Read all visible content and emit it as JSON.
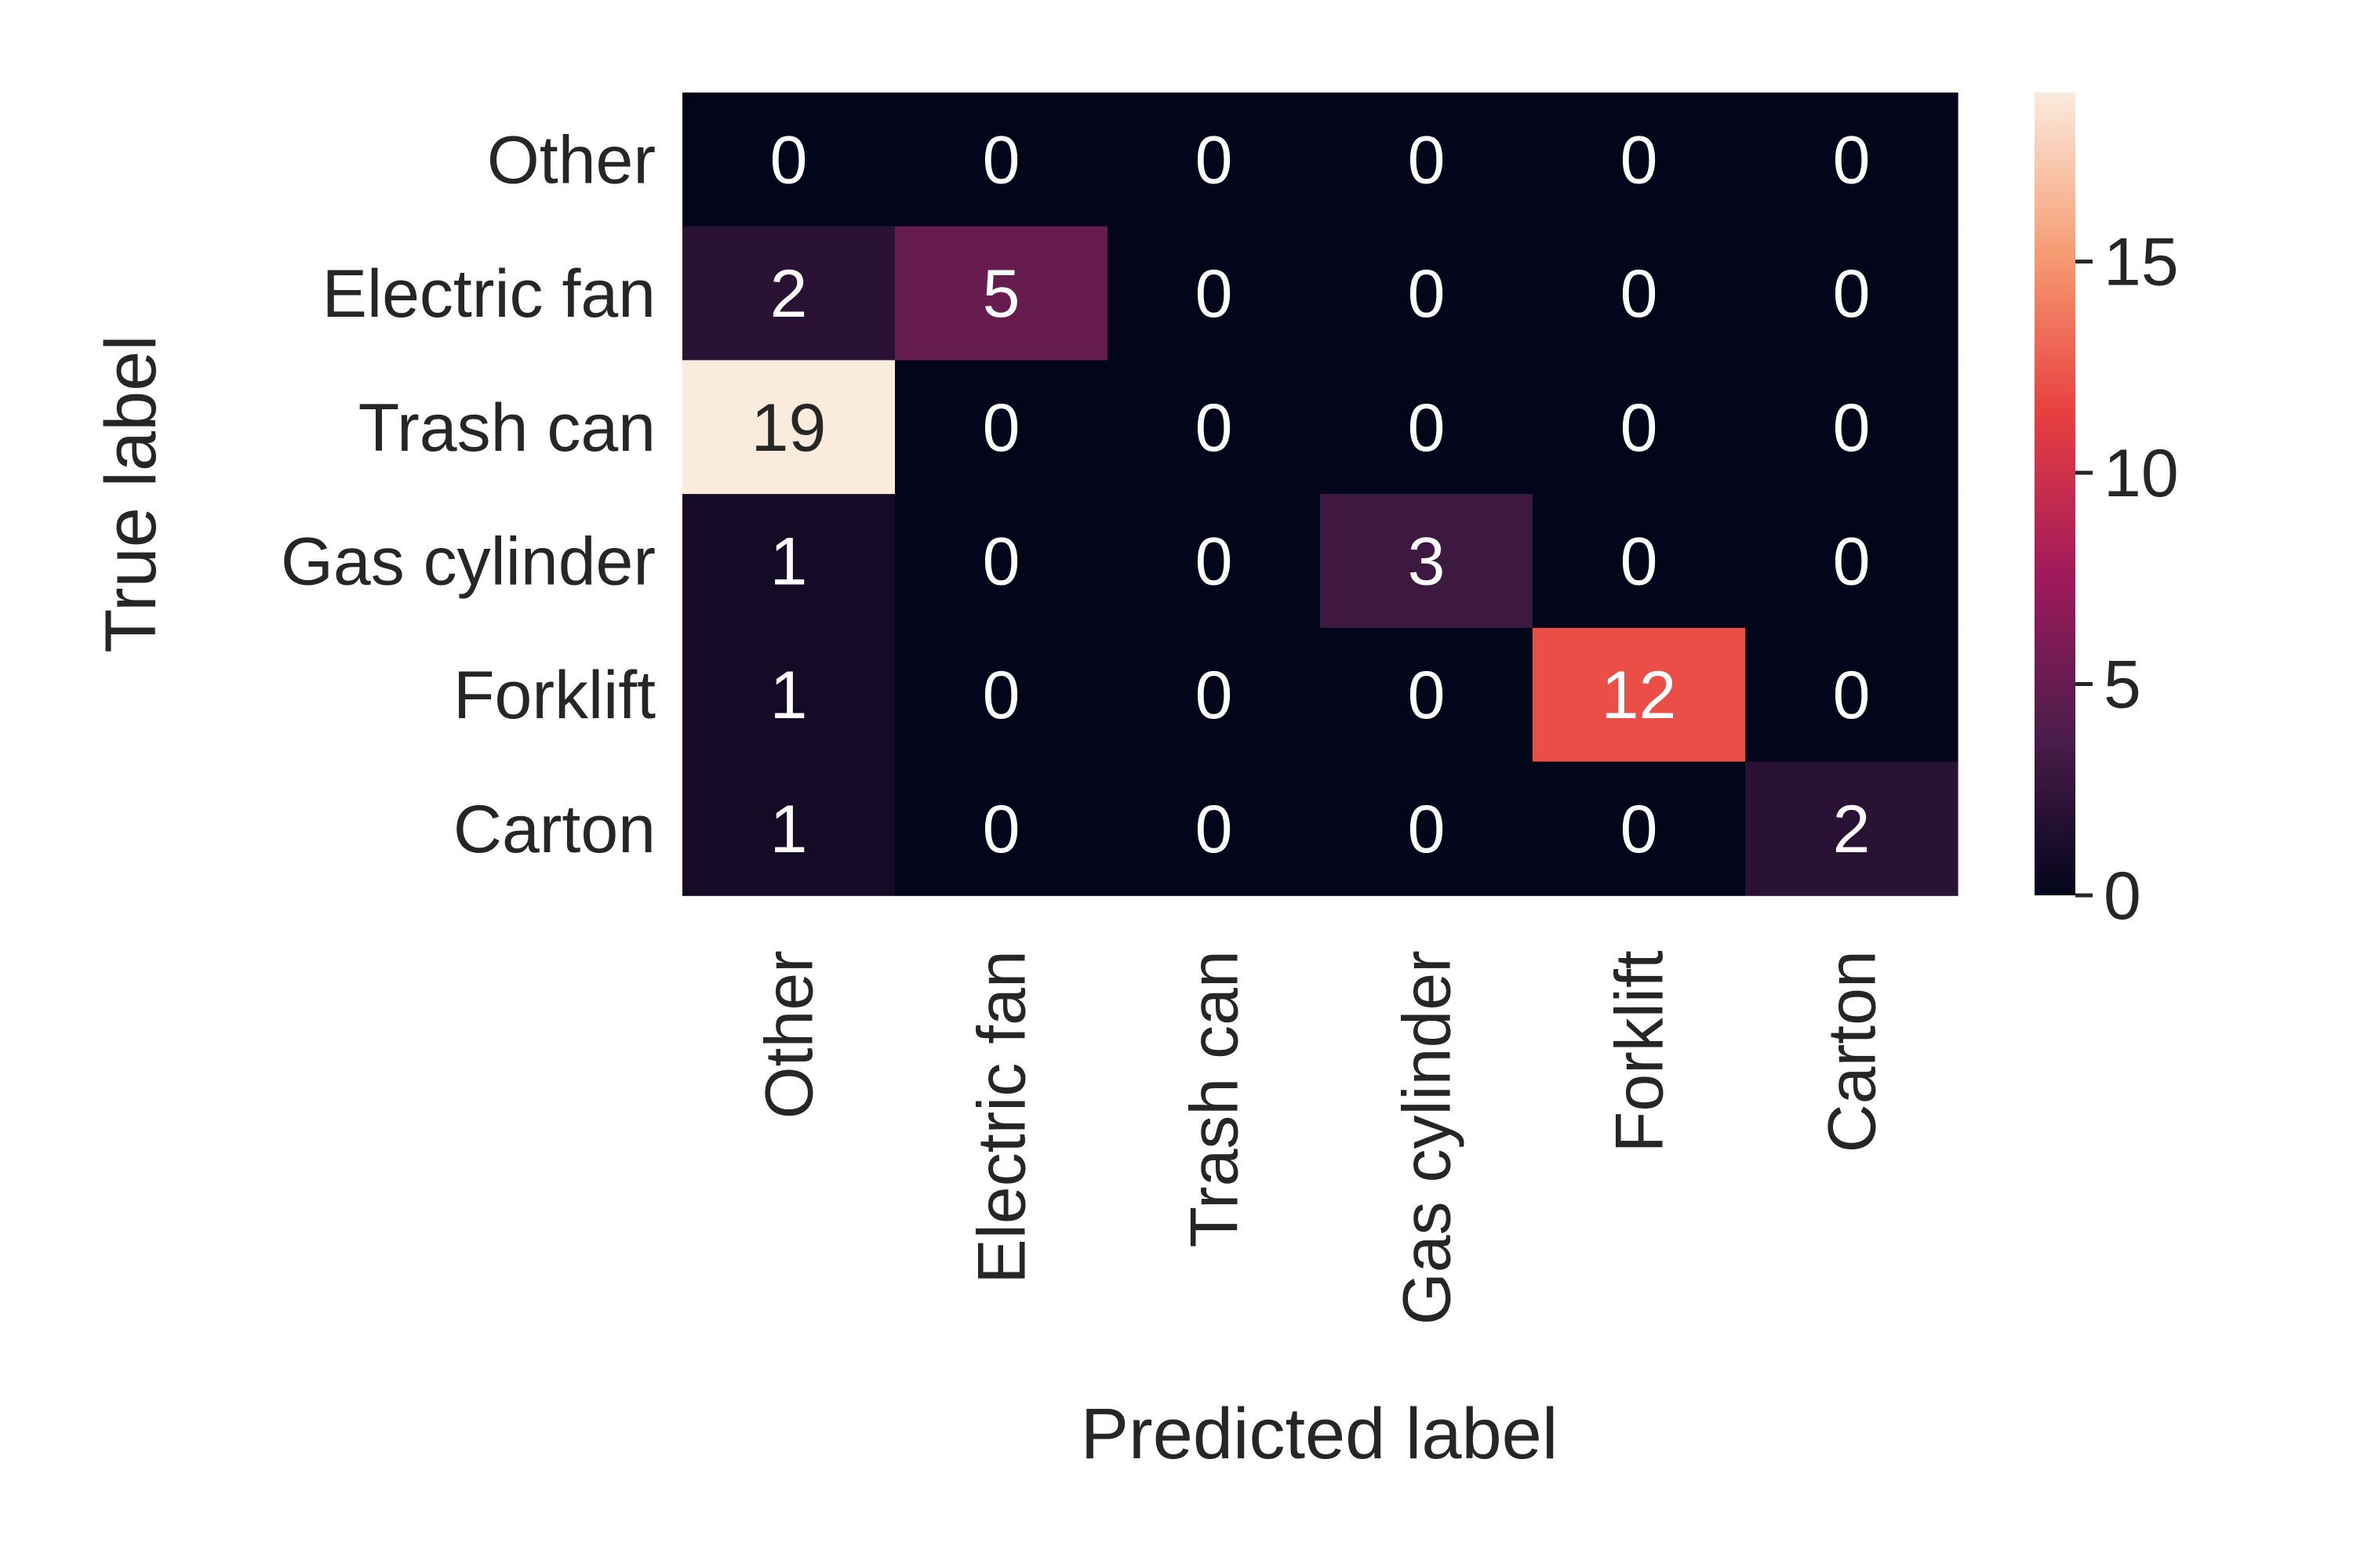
{
  "chart_data": {
    "type": "heatmap",
    "title": "",
    "xlabel": "Predicted label",
    "ylabel": "True label",
    "x_categories": [
      "Other",
      "Electric fan",
      "Trash can",
      "Gas cylinder",
      "Forklift",
      "Carton"
    ],
    "y_categories": [
      "Other",
      "Electric fan",
      "Trash can",
      "Gas cylinder",
      "Forklift",
      "Carton"
    ],
    "values": [
      [
        0,
        0,
        0,
        0,
        0,
        0
      ],
      [
        2,
        5,
        0,
        0,
        0,
        0
      ],
      [
        19,
        0,
        0,
        0,
        0,
        0
      ],
      [
        1,
        0,
        0,
        3,
        0,
        0
      ],
      [
        1,
        0,
        0,
        0,
        12,
        0
      ],
      [
        1,
        0,
        0,
        0,
        0,
        2
      ]
    ],
    "colorbar": {
      "range": [
        0,
        19
      ],
      "ticks": [
        0,
        5,
        10,
        15
      ],
      "tick_labels": [
        "0",
        "5",
        "10",
        "15"
      ],
      "colormap": "rocket",
      "colormap_stops": [
        "#03051a",
        "#4c1d4b",
        "#a11a5b",
        "#e83f3f",
        "#f69c73",
        "#faebdd"
      ]
    },
    "annot_colors": {
      "dark": "#262626",
      "light": "#ffffff"
    }
  }
}
